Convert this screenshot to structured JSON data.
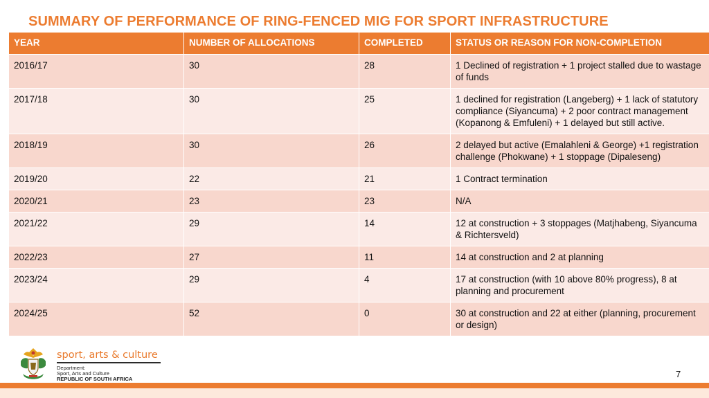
{
  "slide": {
    "title": "SUMMARY OF PERFORMANCE OF RING-FENCED MIG FOR SPORT INFRASTRUCTURE",
    "page_number": "7"
  },
  "table": {
    "headers": [
      "YEAR",
      "NUMBER OF ALLOCATIONS",
      "COMPLETED",
      "STATUS OR REASON FOR NON-COMPLETION"
    ],
    "rows": [
      [
        "2016/17",
        "30",
        "28",
        "1 Declined of registration + 1 project stalled due to wastage of funds"
      ],
      [
        "2017/18",
        "30",
        "25",
        "1 declined for registration (Langeberg) + 1 lack of statutory compliance (Siyancuma) + 2 poor contract management (Kopanong & Emfuleni) + 1 delayed but still active."
      ],
      [
        "2018/19",
        "30",
        "26",
        "2 delayed but active (Emalahleni & George) +1 registration challenge (Phokwane) + 1 stoppage (Dipaleseng)"
      ],
      [
        "2019/20",
        "22",
        "21",
        "1 Contract termination"
      ],
      [
        "2020/21",
        "23",
        "23",
        "N/A"
      ],
      [
        "2021/22",
        "29",
        "14",
        "12 at construction + 3 stoppages (Matjhabeng, Siyancuma & Richtersveld)"
      ],
      [
        "2022/23",
        "27",
        "11",
        "14 at construction and 2 at planning"
      ],
      [
        "2023/24",
        "29",
        "4",
        "17 at construction (with 10 above 80% progress), 8 at planning and procurement"
      ],
      [
        "2024/25",
        "52",
        "0",
        "30 at construction and 22 at either (planning, procurement or design)"
      ]
    ]
  },
  "footer": {
    "brand_name": "sport, arts & culture",
    "dept_line1": "Department:",
    "dept_line2": "Sport, Arts and Culture",
    "dept_line3": "REPUBLIC OF SOUTH AFRICA",
    "logo_icon": "south-africa-coat-of-arms-icon"
  },
  "colors": {
    "accent": "#ec7c30",
    "row_dark": "#f8d7cd",
    "row_light": "#fbeae6"
  }
}
